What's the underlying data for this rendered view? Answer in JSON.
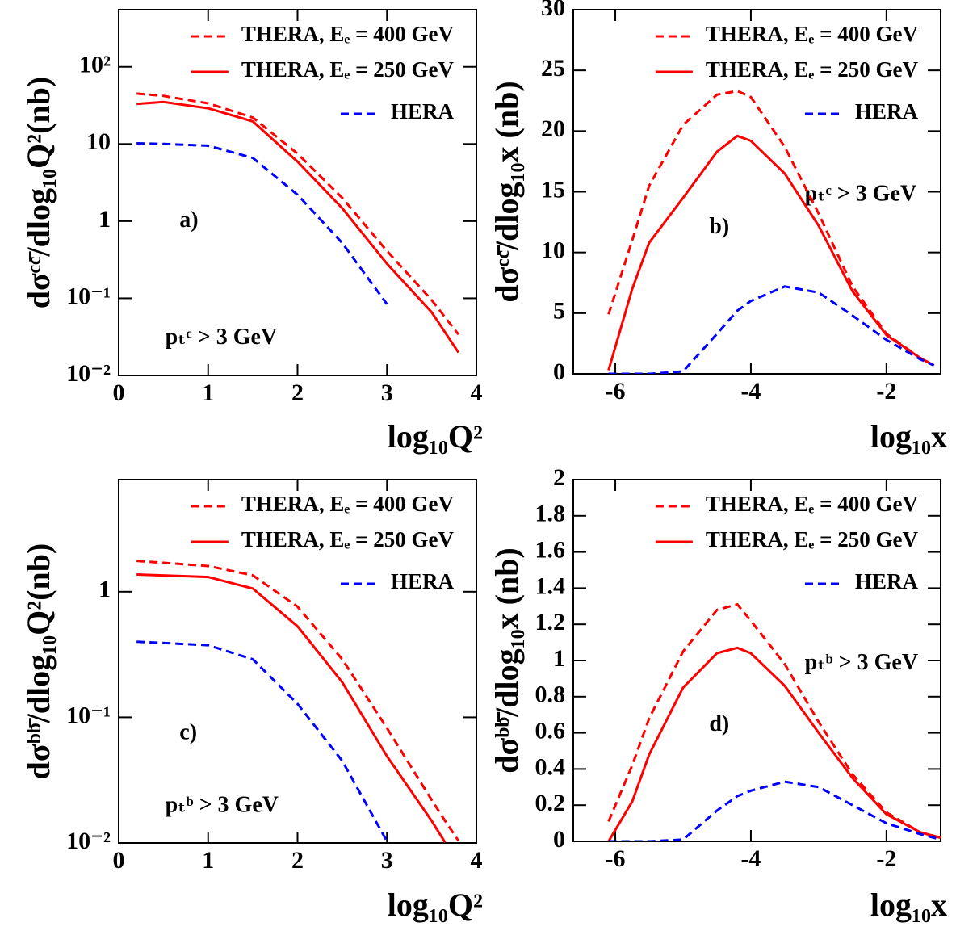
{
  "chart_data": [
    {
      "type": "line",
      "log_y": true,
      "legend_position": "upper right",
      "x_label": "log₁₀Q²",
      "y_label": "dσᶜᶜ̄/dlog₁₀Q²(nb)",
      "annotations": [
        "a)",
        "pₜᶜ > 3 GeV"
      ],
      "xlim": [
        0,
        4
      ],
      "xticks": [
        0,
        1,
        2,
        3,
        4
      ],
      "ylim": [
        0.01,
        550
      ],
      "yticks": [
        {
          "value": 100,
          "label": "10²"
        },
        10,
        1,
        {
          "value": 0.1,
          "label": "10⁻¹"
        },
        {
          "value": 0.01,
          "label": "10⁻²"
        }
      ],
      "x": [
        0.2,
        0.5,
        1,
        1.5,
        2,
        2.5,
        3,
        3.5,
        3.8
      ],
      "series": [
        {
          "name": "THERA, Eₑ = 400 GeV",
          "color": "#ff0000",
          "dash": "dashed",
          "values": [
            45,
            42,
            33.6,
            22,
            7.5,
            2.0,
            0.41,
            0.095,
            0.034
          ]
        },
        {
          "name": "THERA, Eₑ = 250 GeV",
          "color": "#ff0000",
          "dash": "solid",
          "values": [
            33,
            35,
            29,
            19.6,
            5.9,
            1.47,
            0.28,
            0.066,
            0.0198
          ]
        },
        {
          "name": "HERA",
          "color": "#0000ff",
          "dash": "dashed",
          "values": [
            10.2,
            10,
            9.5,
            6.6,
            2.2,
            0.52,
            0.084,
            null,
            null
          ]
        }
      ]
    },
    {
      "type": "line",
      "log_y": false,
      "legend_position": "upper right",
      "x_label": "log₁₀x",
      "y_label": "dσᶜᶜ̄/dlog₁₀x (nb)",
      "annotations": [
        "b)",
        "pₜᶜ > 3 GeV"
      ],
      "xlim": [
        -6.62,
        -1.2
      ],
      "xticks": [
        -6,
        -4,
        -2
      ],
      "ylim": [
        0,
        30
      ],
      "yticks": [
        0,
        5,
        10,
        15,
        20,
        25,
        30
      ],
      "x": [
        -6.1,
        -5.75,
        -5.5,
        -5,
        -4.5,
        -4.2,
        -4,
        -3.5,
        -3,
        -2.5,
        -2,
        -1.5,
        -1.3
      ],
      "series": [
        {
          "name": "THERA, Eₑ = 400 GeV",
          "color": "#ff0000",
          "dash": "dashed",
          "values": [
            4.9,
            11,
            15.5,
            20.5,
            23,
            23.3,
            22.8,
            18.7,
            13.2,
            7.2,
            3.3,
            1.3,
            0.7
          ]
        },
        {
          "name": "THERA, Eₑ = 250 GeV",
          "color": "#ff0000",
          "dash": "solid",
          "values": [
            0.3,
            7,
            10.8,
            14.5,
            18.3,
            19.6,
            19.2,
            16.5,
            12.2,
            6.8,
            3.2,
            1.3,
            0.7
          ]
        },
        {
          "name": "HERA",
          "color": "#0000ff",
          "dash": "dashed",
          "values": [
            0,
            0,
            0,
            0.2,
            3.3,
            5.2,
            6.0,
            7.2,
            6.7,
            4.8,
            2.8,
            1.2,
            0.7
          ]
        }
      ]
    },
    {
      "type": "line",
      "log_y": true,
      "legend_position": "upper right",
      "x_label": "log₁₀Q²",
      "y_label": "dσᵇᵇ̄/dlog₁₀Q²(nb)",
      "annotations": [
        "c)",
        "pₜᵇ > 3 GeV"
      ],
      "xlim": [
        0,
        4
      ],
      "xticks": [
        0,
        1,
        2,
        3,
        4
      ],
      "ylim": [
        0.01,
        7.8
      ],
      "yticks": [
        1,
        {
          "value": 0.1,
          "label": "10⁻¹"
        },
        {
          "value": 0.01,
          "label": "10⁻²"
        }
      ],
      "x": [
        0.2,
        1,
        1.5,
        2,
        2.5,
        3,
        3.5,
        3.65,
        3.8
      ],
      "series": [
        {
          "name": "THERA, Eₑ = 400 GeV",
          "color": "#ff0000",
          "dash": "dashed",
          "values": [
            1.76,
            1.6,
            1.35,
            0.76,
            0.29,
            0.082,
            0.022,
            0.015,
            0.0104
          ]
        },
        {
          "name": "THERA, Eₑ = 250 GeV",
          "color": "#ff0000",
          "dash": "solid",
          "values": [
            1.37,
            1.31,
            1.06,
            0.53,
            0.19,
            0.049,
            0.015,
            0.0101,
            null
          ]
        },
        {
          "name": "HERA",
          "color": "#0000ff",
          "dash": "dashed",
          "values": [
            0.4,
            0.375,
            0.29,
            0.128,
            0.045,
            0.0103,
            null,
            null,
            null
          ]
        }
      ]
    },
    {
      "type": "line",
      "log_y": false,
      "legend_position": "upper right",
      "x_label": "log₁₀x",
      "y_label": "dσᵇᵇ̄/dlog₁₀x (nb)",
      "annotations": [
        "d)",
        "pₜᵇ > 3 GeV"
      ],
      "xlim": [
        -6.62,
        -1.2
      ],
      "xticks": [
        -6,
        -4,
        -2
      ],
      "ylim": [
        0,
        2
      ],
      "yticks": [
        0,
        0.2,
        0.4,
        0.6,
        0.8,
        1,
        1.2,
        1.4,
        1.6,
        1.8,
        2
      ],
      "x": [
        -6.1,
        -5.75,
        -5.5,
        -5,
        -4.5,
        -4.2,
        -4,
        -3.5,
        -3,
        -2.5,
        -2,
        -1.5,
        -1.2
      ],
      "series": [
        {
          "name": "THERA, Eₑ = 400 GeV",
          "color": "#ff0000",
          "dash": "dashed",
          "values": [
            0.11,
            0.42,
            0.68,
            1.05,
            1.28,
            1.31,
            1.22,
            0.98,
            0.66,
            0.37,
            0.16,
            0.05,
            0.02
          ]
        },
        {
          "name": "THERA, Eₑ = 250 GeV",
          "color": "#ff0000",
          "dash": "solid",
          "values": [
            0,
            0.22,
            0.48,
            0.85,
            1.04,
            1.07,
            1.04,
            0.86,
            0.6,
            0.35,
            0.15,
            0.05,
            0.02
          ]
        },
        {
          "name": "HERA",
          "color": "#0000ff",
          "dash": "dashed",
          "values": [
            0,
            0,
            0,
            0.01,
            0.17,
            0.25,
            0.28,
            0.33,
            0.3,
            0.2,
            0.1,
            0.04,
            0.01
          ]
        }
      ]
    }
  ]
}
